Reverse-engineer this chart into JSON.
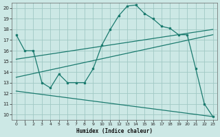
{
  "xlabel": "Humidex (Indice chaleur)",
  "bg_color": "#cce8e5",
  "line_color": "#1a7a6e",
  "grid_color": "#a0c8c4",
  "xlim": [
    -0.5,
    23.5
  ],
  "ylim": [
    9.5,
    20.5
  ],
  "x_ticks": [
    0,
    1,
    2,
    3,
    4,
    5,
    6,
    7,
    8,
    9,
    10,
    11,
    12,
    13,
    14,
    15,
    16,
    17,
    18,
    19,
    20,
    21,
    22,
    23
  ],
  "y_ticks": [
    10,
    11,
    12,
    13,
    14,
    15,
    16,
    17,
    18,
    19,
    20
  ],
  "series1_x": [
    0,
    1,
    2,
    3,
    4,
    5,
    6,
    7,
    8,
    9,
    10,
    11,
    12,
    13,
    14,
    15,
    16,
    17,
    18,
    19,
    20,
    21,
    22,
    23
  ],
  "series1_y": [
    17.5,
    16.0,
    16.0,
    13.0,
    12.5,
    13.8,
    13.0,
    13.0,
    13.0,
    14.3,
    16.5,
    18.0,
    19.3,
    20.2,
    20.3,
    19.5,
    19.0,
    18.3,
    18.1,
    17.5,
    17.5,
    14.3,
    11.0,
    9.8
  ],
  "series2_x": [
    0,
    23
  ],
  "series2_y": [
    15.2,
    18.0
  ],
  "series3_x": [
    0,
    23
  ],
  "series3_y": [
    13.5,
    17.5
  ],
  "series4_x": [
    0,
    23
  ],
  "series4_y": [
    12.2,
    9.8
  ]
}
